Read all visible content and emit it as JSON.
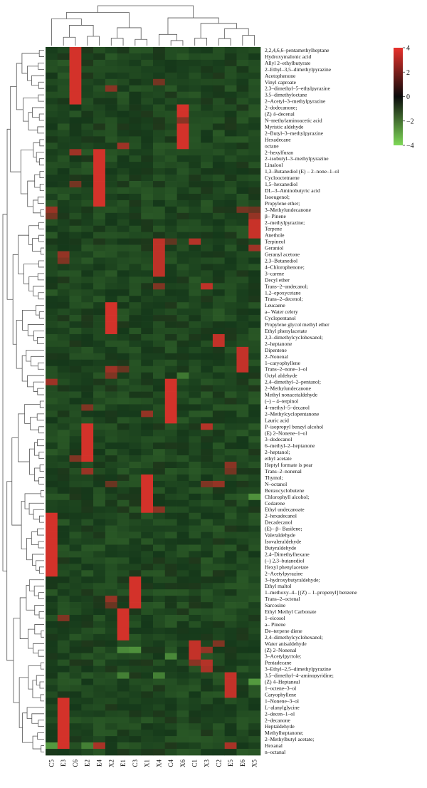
{
  "chart_data": {
    "type": "heatmap",
    "title": "",
    "xlabel": "",
    "ylabel": "",
    "columns": [
      "C5",
      "E3",
      "C6",
      "E2",
      "E4",
      "X2",
      "E1",
      "C3",
      "X1",
      "X4",
      "C4",
      "X6",
      "C1",
      "X3",
      "C2",
      "E5",
      "E6",
      "X5"
    ],
    "rows": [
      "2,2,4,6,6–pentamethylheptane",
      "Hydroxymalonic acid",
      "Allyl 2–ethylbutyrate",
      "2–Ethyl–3,5–dimethylpyrazine",
      "Acetophenone",
      "Vinyl caproate",
      "2,3–dimethyl–5–ethylpyrazine",
      "3,5–dimethyloctane",
      "2–Acetyl–3–methylpyrazine",
      "2–dodecanone;",
      "(Z) 4–decenal",
      "N–methylaminoacetic acid",
      "Myristic aldehyde",
      "2–Butyl–3–methylpyrazine",
      "Hexadecane",
      "octane",
      "2–hexylfuran",
      "2–isobutyl–3–methylpyrazine",
      "Linalool",
      "1,3–Butanediol (E) – 2–none–1–ol",
      "Cyclooctetraene",
      "1,5–hexanediol",
      "DL–3–Aminobutyric acid",
      "Isoeugenol;",
      "Propylene ether;",
      "3–Methylundecanone",
      "β– Pinene",
      "2–methylpyrazine;",
      "Terpene",
      "Anethole",
      "Terpineol",
      "Geraniol",
      "Geranyl acetone",
      "2,3–Butanediol",
      "4–Chlorophenone;",
      "3–carene",
      "Decyl ether",
      "Trans–2–undecanol;",
      "1,2–epoxycetane",
      "Trans–2–decenol;",
      "Leucaene",
      "a– Water celery",
      "Cyclopentanol",
      "Propylene glycol methyl ether",
      "Ethyl phenylacetate",
      "2,3–dimethylcyclohexanol;",
      "2–heptanone",
      "Dipentene",
      "2–Nonenal",
      "1–caryophyllene",
      "Trans–2–none–1–ol",
      "Octyl aldehyde",
      "2,4–dimethyl–2–pentanol;",
      "2–Methylundecanone",
      "Methyl nonacetaldehyde",
      "(–) – 4–terpinol",
      "4–methyl–5–decanol",
      "2–Methylcyclopentanone",
      "Lauric acid",
      "P–isopropyl benzyl alcohol",
      "(E) 2–Nonene–1–ol",
      "3–dodecanol",
      "6–methyl–2–heptanone",
      "2–heptanol;",
      "ethyl acetate",
      "Heptyl formate is pear",
      "Trans–2–nonenal",
      "Thymol;",
      "N–octanol",
      "Benzocyclobutene",
      "Chlorophyll alcohol;",
      "Cedarene",
      "Ethyl undecanoate",
      "2–hexadecanol",
      "Decadecanol",
      "(E)– β– Basilene;",
      "Valeraldehyde",
      "Isovaleraldehyde",
      "Butyraldehyde",
      "2,4–Dimethylhexane",
      "(–) 2,3–butanediol",
      "Hexyl phenylacetate",
      "2–Acetylpyrazine",
      "3–hydroxybutyraldehyde;",
      "Ethyl maltol",
      "1–methoxy–4– [(Z) – 1–propenyl] benzene",
      "Trans–2–octenal",
      "Sarcosine",
      "Ethyl Methyl Carbonate",
      "1–eicosol",
      "a– Pinene",
      "De–terpene diene",
      "2,4–dimethylcyclohexanol;",
      "Water anisaldehyde",
      "(Z) 2–Nonenal",
      "3–Acetylpyrrole;",
      "Pentadecane",
      "3–Ethyl–2,5–dimethylpyrazine",
      "3,5–dimethyl–4–aminopyridine;",
      "(Z) 4–Heptaneal",
      "1–octene–3–ol",
      "Caryophyllene",
      "1–Nonene–3–ol",
      "L–alanylglycine",
      "2–decen–1–ol",
      "2–decanone",
      "Heptaldehyde",
      "Methylheptanone;",
      "2–Methylbutyl acetate;",
      "Hexanal",
      "n–octanal"
    ],
    "value_range": [
      -4,
      4
    ],
    "colorscale": {
      "low": "#7ed957",
      "mid": "#0b0b0b",
      "high": "#e8312c"
    },
    "legend_ticks": [
      "4",
      "2",
      "0",
      "−2",
      "−4"
    ],
    "legend_values": [
      4,
      2,
      0,
      -2,
      -4
    ],
    "default_value": -0.3,
    "high_cells": [
      {
        "col": "C6",
        "rows": [
          0,
          1,
          2,
          3,
          4,
          5,
          6,
          7,
          8
        ],
        "value": 3.6
      },
      {
        "col": "X6",
        "rows": [
          9,
          10,
          11,
          12,
          13,
          14,
          15
        ],
        "value": 3.6
      },
      {
        "col": "E4",
        "rows": [
          16,
          17,
          18,
          19,
          20,
          21,
          22,
          23,
          24
        ],
        "value": 3.6
      },
      {
        "col": "X5",
        "rows": [
          27,
          28,
          29
        ],
        "value": 3.4
      },
      {
        "col": "X4",
        "rows": [
          30,
          31,
          32,
          33,
          34,
          35
        ],
        "value": 3.2
      },
      {
        "col": "X2",
        "rows": [
          40,
          41,
          42,
          43,
          44
        ],
        "value": 3.6
      },
      {
        "col": "C2",
        "rows": [
          45,
          46
        ],
        "value": 3.3
      },
      {
        "col": "E6",
        "rows": [
          47,
          48,
          49,
          50
        ],
        "value": 3.3
      },
      {
        "col": "C4",
        "rows": [
          52,
          53,
          54,
          55,
          56,
          57,
          58
        ],
        "value": 3.6
      },
      {
        "col": "E2",
        "rows": [
          59,
          60,
          61,
          62,
          63,
          64
        ],
        "value": 3.6
      },
      {
        "col": "X1",
        "rows": [
          67,
          68,
          69,
          70,
          71,
          72
        ],
        "value": 3.6
      },
      {
        "col": "C5",
        "rows": [
          73,
          74,
          75,
          76,
          77,
          78,
          79,
          80,
          81,
          82
        ],
        "value": 3.6
      },
      {
        "col": "C3",
        "rows": [
          83,
          84,
          85,
          86,
          87
        ],
        "value": 3.6
      },
      {
        "col": "E1",
        "rows": [
          88,
          89,
          90,
          91,
          92
        ],
        "value": 3.6
      },
      {
        "col": "C1",
        "rows": [
          93,
          94,
          95
        ],
        "value": 3.3
      },
      {
        "col": "X3",
        "rows": [
          96,
          97
        ],
        "value": 3.0
      },
      {
        "col": "E5",
        "rows": [
          98,
          99,
          100,
          101
        ],
        "value": 3.3
      },
      {
        "col": "E3",
        "rows": [
          102,
          103,
          104,
          105,
          106,
          107,
          108,
          109
        ],
        "value": 3.6
      }
    ],
    "other_cells": [
      {
        "col": "C5",
        "row": 25,
        "value": 2.5
      },
      {
        "col": "C5",
        "row": 26,
        "value": 1.8
      },
      {
        "col": "E6",
        "row": 25,
        "value": 1.8
      },
      {
        "col": "X5",
        "row": 25,
        "value": 1.6
      },
      {
        "col": "X5",
        "row": 26,
        "value": 2.4
      },
      {
        "col": "X5",
        "row": 31,
        "value": 2.6
      },
      {
        "col": "X4",
        "row": 37,
        "value": 2.0
      },
      {
        "col": "C4",
        "row": 30,
        "value": 1.4
      },
      {
        "col": "C1",
        "row": 30,
        "value": 3.0
      },
      {
        "col": "X3",
        "row": 37,
        "value": 3.2
      },
      {
        "col": "E3",
        "row": 32,
        "value": 2.4
      },
      {
        "col": "E3",
        "row": 33,
        "value": 2.0
      },
      {
        "col": "C6",
        "row": 16,
        "value": 2.6
      },
      {
        "col": "C5",
        "row": 52,
        "value": 2.6
      },
      {
        "col": "X2",
        "row": 50,
        "value": 2.6
      },
      {
        "col": "X2",
        "row": 51,
        "value": 2.0
      },
      {
        "col": "E1",
        "row": 50,
        "value": 1.6
      },
      {
        "col": "X1",
        "row": 57,
        "value": 2.4
      },
      {
        "col": "E2",
        "row": 56,
        "value": 2.0
      },
      {
        "col": "X3",
        "row": 59,
        "value": 3.0
      },
      {
        "col": "C6",
        "row": 64,
        "value": 2.0
      },
      {
        "col": "E2",
        "row": 66,
        "value": 2.5
      },
      {
        "col": "E5",
        "row": 65,
        "value": 2.2
      },
      {
        "col": "E5",
        "row": 66,
        "value": 1.8
      },
      {
        "col": "X6",
        "row": 11,
        "value": 2.2
      },
      {
        "col": "X4",
        "row": 5,
        "value": 1.8
      },
      {
        "col": "E1",
        "row": 15,
        "value": 2.6
      },
      {
        "col": "C6",
        "row": 21,
        "value": 1.8
      },
      {
        "col": "X2",
        "row": 6,
        "value": 2.2
      },
      {
        "col": "X2",
        "row": 68,
        "value": 1.6
      },
      {
        "col": "X3",
        "row": 68,
        "value": 2.0
      },
      {
        "col": "C2",
        "row": 68,
        "value": 2.4
      },
      {
        "col": "X4",
        "row": 72,
        "value": 2.2
      },
      {
        "col": "E3",
        "row": 89,
        "value": 2.0
      },
      {
        "col": "X2",
        "row": 86,
        "value": 2.4
      },
      {
        "col": "X2",
        "row": 87,
        "value": 1.6
      },
      {
        "col": "C2",
        "row": 93,
        "value": 2.0
      },
      {
        "col": "X3",
        "row": 94,
        "value": 2.4
      },
      {
        "col": "C1",
        "row": 96,
        "value": 2.2
      },
      {
        "col": "E4",
        "row": 109,
        "value": 2.8
      },
      {
        "col": "E5",
        "row": 109,
        "value": 2.8
      },
      {
        "col": "X3",
        "row": 97,
        "value": 2.8
      },
      {
        "col": "C3",
        "row": 94,
        "value": -2.2
      },
      {
        "col": "E1",
        "row": 94,
        "value": -2.0
      },
      {
        "col": "X5",
        "row": 99,
        "value": -2.4
      },
      {
        "col": "X4",
        "row": 98,
        "value": -1.8
      },
      {
        "col": "C5",
        "row": 109,
        "value": -2.4
      },
      {
        "col": "E2",
        "row": 109,
        "value": -1.8
      },
      {
        "col": "X5",
        "row": 70,
        "value": -2.2
      },
      {
        "col": "C4",
        "row": 95,
        "value": -2.0
      },
      {
        "col": "X6",
        "row": 51,
        "value": -1.6
      },
      {
        "col": "E1",
        "row": 98,
        "value": -1.8
      }
    ]
  }
}
